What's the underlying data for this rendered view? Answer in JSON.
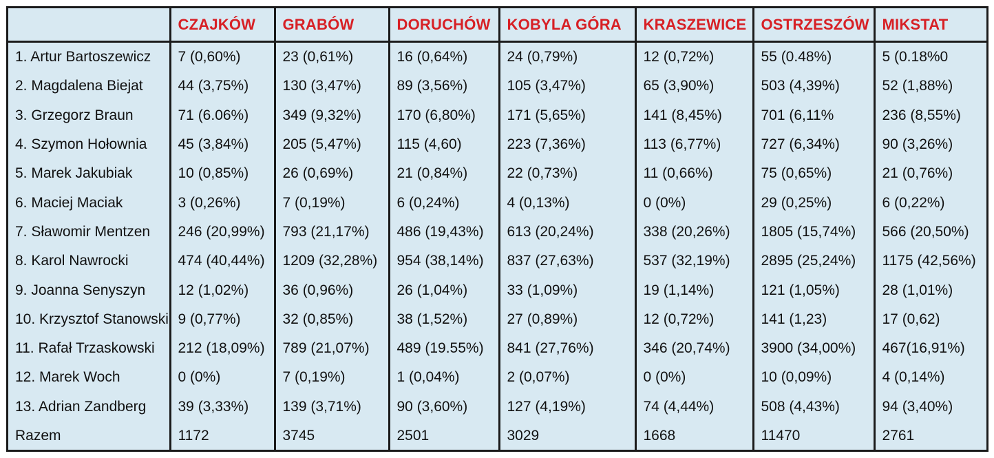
{
  "columns": [
    "",
    "CZAJKÓW",
    "GRABÓW",
    "DORUCHÓW",
    "KOBYLA GÓRA",
    "KRASZEWICE",
    "OSTRZESZÓW",
    "MIKSTAT"
  ],
  "rows": [
    [
      "1. Artur Bartoszewicz",
      "7 (0,60%)",
      "23 (0,61%)",
      "16 (0,64%)",
      "24 (0,79%)",
      "12 (0,72%)",
      "55 (0.48%)",
      "5 (0.18%0"
    ],
    [
      "2. Magdalena Biejat",
      "44 (3,75%)",
      "130 (3,47%)",
      "89 (3,56%)",
      "105 (3,47%)",
      "65 (3,90%)",
      "503 (4,39%)",
      "52 (1,88%)"
    ],
    [
      "3. Grzegorz Braun",
      "71 (6.06%)",
      "349 (9,32%)",
      "170 (6,80%)",
      "171 (5,65%)",
      "141 (8,45%)",
      "701 (6,11%",
      "236 (8,55%)"
    ],
    [
      "4. Szymon Hołownia",
      "45 (3,84%)",
      "205 (5,47%)",
      "115 (4,60)",
      "223 (7,36%)",
      "113 (6,77%)",
      "727 (6,34%)",
      "90 (3,26%)"
    ],
    [
      "5. Marek Jakubiak",
      "10 (0,85%)",
      "26 (0,69%)",
      "21 (0,84%)",
      "22 (0,73%)",
      "11 (0,66%)",
      "75 (0,65%)",
      "21 (0,76%)"
    ],
    [
      "6. Maciej Maciak",
      "3 (0,26%)",
      "7 (0,19%)",
      "6 (0,24%)",
      "4 (0,13%)",
      "0 (0%)",
      "29 (0,25%)",
      "6 (0,22%)"
    ],
    [
      "7. Sławomir Mentzen",
      "246 (20,99%)",
      "793 (21,17%)",
      "486 (19,43%)",
      "613 (20,24%)",
      "338 (20,26%)",
      "1805 (15,74%)",
      "566 (20,50%)"
    ],
    [
      "8. Karol Nawrocki",
      "474 (40,44%)",
      "1209 (32,28%)",
      "954 (38,14%)",
      "837 (27,63%)",
      "537 (32,19%)",
      "2895 (25,24%)",
      "1175 (42,56%)"
    ],
    [
      "9. Joanna Senyszyn",
      "12 (1,02%)",
      "36 (0,96%)",
      "26 (1,04%)",
      "33 (1,09%)",
      "19 (1,14%)",
      "121 (1,05%)",
      "28 (1,01%)"
    ],
    [
      "10. Krzysztof Stanowski",
      "9 (0,77%)",
      "32 (0,85%)",
      "38 (1,52%)",
      "27 (0,89%)",
      "12 (0,72%)",
      "141 (1,23)",
      "17 (0,62)"
    ],
    [
      "11. Rafał Trzaskowski",
      "212 (18,09%)",
      "789 (21,07%)",
      "489 (19.55%)",
      "841 (27,76%)",
      "346 (20,74%)",
      "3900 (34,00%)",
      "467(16,91%)"
    ],
    [
      "12. Marek Woch",
      "0 (0%)",
      "7 (0,19%)",
      "1 (0,04%)",
      "2 (0,07%)",
      "0 (0%)",
      "10 (0,09%)",
      "4 (0,14%)"
    ],
    [
      "13. Adrian Zandberg",
      "39 (3,33%)",
      "139 (3,71%)",
      "90 (3,60%)",
      "127 (4,19%)",
      "74 (4,44%)",
      "508 (4,43%)",
      "94 (3,40%)"
    ],
    [
      "Razem",
      "1172",
      "3745",
      "2501",
      "3029",
      "1668",
      "11470",
      "2761"
    ]
  ],
  "colors": {
    "header_text": "#d72025",
    "background": "#d8e9f2",
    "border": "#1b1b1b"
  }
}
